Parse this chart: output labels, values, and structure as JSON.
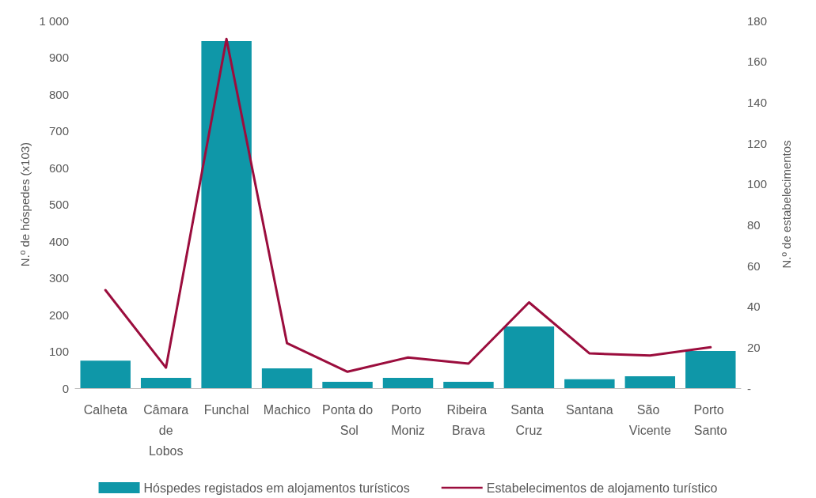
{
  "chart_data": {
    "type": "bar",
    "categories": [
      "Calheta",
      "Câmara de Lobos",
      "Funchal",
      "Machico",
      "Ponta do Sol",
      "Porto Moniz",
      "Ribeira Brava",
      "Santa Cruz",
      "Santana",
      "São Vicente",
      "Porto Santo"
    ],
    "series": [
      {
        "name": "Hóspedes registados em alojamentos turísticos",
        "color": "#0f97a8",
        "values": [
          75,
          28,
          944,
          54,
          17,
          28,
          17,
          168,
          24,
          32,
          101
        ]
      },
      {
        "name": "Estabelecimentos de alojamento turístico",
        "type": "line",
        "axis": "y2",
        "color": "#9b0d3d",
        "values": [
          48,
          10,
          171,
          22,
          8,
          15,
          12,
          42,
          17,
          16,
          20
        ]
      }
    ],
    "ylabel": "N.º de hóspedes (x103)",
    "y2label": "N.º de estabelecimentos",
    "ylim": [
      0,
      1000
    ],
    "yticks": [
      0,
      100,
      200,
      300,
      400,
      500,
      600,
      700,
      800,
      900,
      {
        "value": 1000,
        "label": "1 000"
      }
    ],
    "y2lim": [
      0,
      180
    ],
    "y2ticks": [
      {
        "value": 0,
        "label": "-"
      },
      20,
      40,
      60,
      80,
      100,
      120,
      140,
      160,
      180
    ],
    "legend": "bottom",
    "grid": false,
    "marker": "none",
    "line_style": "solid"
  }
}
